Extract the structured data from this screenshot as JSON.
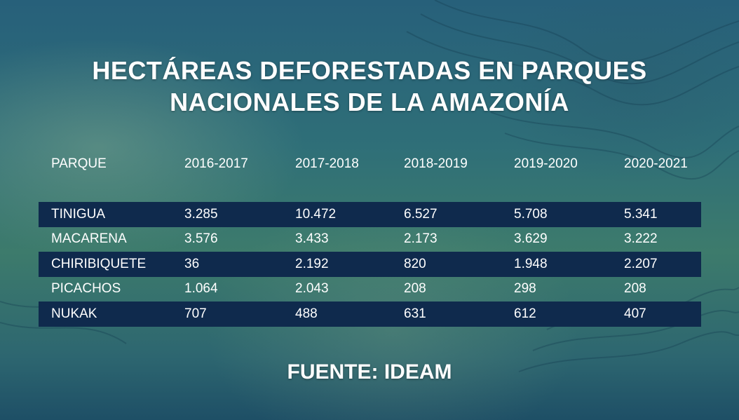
{
  "title_lines": [
    "HECTÁREAS DEFORESTADAS EN PARQUES",
    "NACIONALES DE LA AMAZONÍA"
  ],
  "source": "FUENTE: IDEAM",
  "colors": {
    "row_dark": "#0f2a4d",
    "text": "#ffffff",
    "background": "#2f6f78"
  },
  "chart_data": {
    "type": "table",
    "title": "HECTÁREAS DEFORESTADAS EN PARQUES NACIONALES DE LA AMAZONÍA",
    "columns": [
      "PARQUE",
      "2016-2017",
      "2017-2018",
      "2018-2019",
      "2019-2020",
      "2020-2021"
    ],
    "rows": [
      [
        "TINIGUA",
        "3.285",
        "10.472",
        "6.527",
        "5.708",
        "5.341"
      ],
      [
        "MACARENA",
        "3.576",
        "3.433",
        "2.173",
        "3.629",
        "3.222"
      ],
      [
        "CHIRIBIQUETE",
        "36",
        "2.192",
        "820",
        "1.948",
        "2.207"
      ],
      [
        "PICACHOS",
        "1.064",
        "2.043",
        "208",
        "298",
        "208"
      ],
      [
        "NUKAK",
        "707",
        "488",
        "631",
        "612",
        "407"
      ]
    ]
  }
}
